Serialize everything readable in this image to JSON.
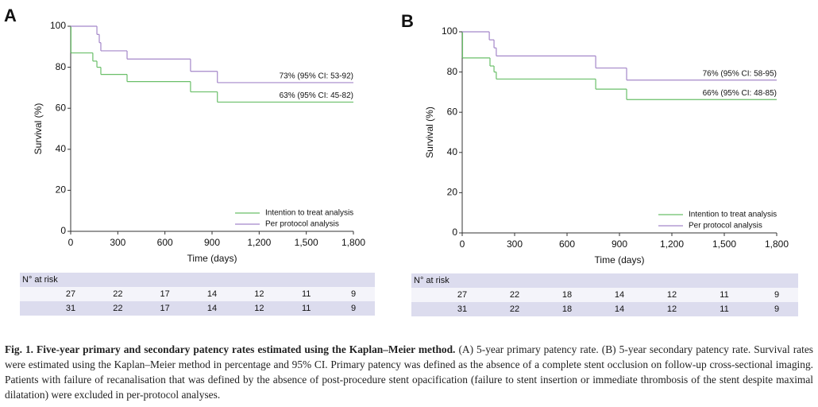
{
  "chart_data": [
    {
      "type": "step",
      "panel": "A",
      "xlabel": "Time (days)",
      "ylabel": "Survival (%)",
      "xlim": [
        0,
        1800
      ],
      "ylim": [
        0,
        100
      ],
      "xticks": [
        0,
        300,
        600,
        900,
        {
          "value": 1200,
          "label": "1,200"
        },
        {
          "value": 1500,
          "label": "1,500"
        },
        {
          "value": 1800,
          "label": "1,800"
        }
      ],
      "yticks": [
        0,
        20,
        40,
        60,
        80,
        100
      ],
      "series": [
        {
          "name": "Intention to treat analysis",
          "color": "#6abf69",
          "x": [
            0,
            2,
            141,
            167,
            192,
            359,
            763,
            934
          ],
          "values": [
            100,
            87,
            83,
            80,
            76.5,
            73,
            68,
            63
          ]
        },
        {
          "name": "Per protocol analysis",
          "color": "#a487c9",
          "x": [
            0,
            167,
            182,
            192,
            359,
            763,
            934
          ],
          "values": [
            100,
            96,
            92,
            88,
            84,
            78,
            72.5
          ]
        }
      ],
      "annotations": [
        "63% (95% CI: 45-82)",
        "73% (95% CI: 53-92)"
      ],
      "risk_table": {
        "title": "N° at risk",
        "rows": [
          [
            "27",
            "22",
            "17",
            "14",
            "12",
            "11",
            "9"
          ],
          [
            "31",
            "22",
            "17",
            "14",
            "12",
            "11",
            "9"
          ]
        ]
      }
    },
    {
      "type": "step",
      "panel": "B",
      "xlabel": "Time (days)",
      "ylabel": "Survival (%)",
      "xlim": [
        0,
        1800
      ],
      "ylim": [
        0,
        100
      ],
      "xticks": [
        0,
        300,
        600,
        900,
        {
          "value": 1200,
          "label": "1,200"
        },
        {
          "value": 1500,
          "label": "1,500"
        },
        {
          "value": 1800,
          "label": "1,800"
        }
      ],
      "yticks": [
        0,
        20,
        40,
        60,
        80,
        100
      ],
      "series": [
        {
          "name": "Intention to treat analysis",
          "color": "#6abf69",
          "x": [
            0,
            2,
            159,
            182,
            195,
            764,
            941
          ],
          "values": [
            100,
            87,
            83,
            80,
            76.5,
            71.5,
            66.3
          ]
        },
        {
          "name": "Per protocol analysis",
          "color": "#a487c9",
          "x": [
            0,
            155,
            182,
            195,
            764,
            941
          ],
          "values": [
            100,
            96,
            92,
            88,
            82,
            76
          ]
        }
      ],
      "annotations": [
        "66% (95% CI: 48-85)",
        "76% (95% CI: 58-95)"
      ],
      "risk_table": {
        "title": "N° at risk",
        "rows": [
          [
            "27",
            "22",
            "18",
            "14",
            "12",
            "11",
            "9"
          ],
          [
            "31",
            "22",
            "18",
            "14",
            "12",
            "11",
            "9"
          ]
        ]
      }
    }
  ],
  "caption": {
    "label": "Fig. 1.",
    "title": "Five-year primary and secondary patency rates estimated using the Kaplan–Meier method.",
    "text": "(A) 5-year primary patency rate. (B) 5-year secondary patency rate. Survival rates were estimated using the Kaplan–Meier method in percentage and 95% CI. Primary patency was defined as the absence of a complete stent occlusion on follow-up cross-sectional imaging. Patients with failure of recanalisation that was defined by the absence of post-procedure stent opacification (failure to stent insertion or immediate thrombosis of the stent despite maximal dilatation) were excluded in per-protocol analyses."
  }
}
